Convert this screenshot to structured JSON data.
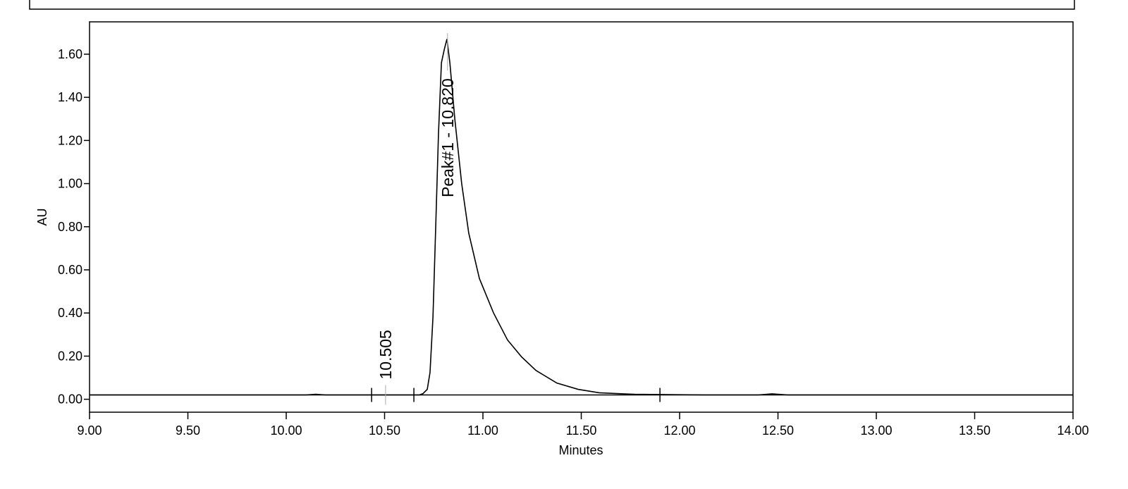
{
  "chart_data": {
    "type": "line",
    "x_label": "Minutes",
    "y_label": "AU",
    "color": "#000000",
    "x": [
      9.0,
      10.1,
      10.15,
      10.2,
      10.6,
      10.677,
      10.695,
      10.717,
      10.731,
      10.746,
      10.76,
      10.774,
      10.789,
      10.803,
      10.817,
      10.832,
      10.857,
      10.892,
      10.928,
      10.982,
      11.054,
      11.125,
      11.197,
      11.269,
      11.376,
      11.484,
      11.591,
      11.77,
      12.13,
      12.4,
      12.47,
      12.55,
      14.0
    ],
    "values": [
      0.02,
      0.02,
      0.023,
      0.02,
      0.02,
      0.02,
      0.026,
      0.046,
      0.124,
      0.38,
      0.8,
      1.23,
      1.56,
      1.62,
      1.67,
      1.56,
      1.3,
      1.0,
      0.77,
      0.56,
      0.4,
      0.275,
      0.196,
      0.134,
      0.075,
      0.046,
      0.03,
      0.023,
      0.02,
      0.02,
      0.025,
      0.02,
      0.02
    ],
    "xlim": [
      9.0,
      14.0
    ],
    "ylim": [
      -0.06,
      1.75
    ],
    "xticks": [
      {
        "value": 9.0,
        "label": "9.00"
      },
      {
        "value": 9.5,
        "label": "9.50"
      },
      {
        "value": 10.0,
        "label": "10.00"
      },
      {
        "value": 10.5,
        "label": "10.50"
      },
      {
        "value": 11.0,
        "label": "11.00"
      },
      {
        "value": 11.5,
        "label": "11.50"
      },
      {
        "value": 12.0,
        "label": "12.00"
      },
      {
        "value": 12.5,
        "label": "12.50"
      },
      {
        "value": 13.0,
        "label": "13.00"
      },
      {
        "value": 13.5,
        "label": "13.50"
      },
      {
        "value": 14.0,
        "label": "14.00"
      }
    ],
    "yticks": [
      {
        "value": 0.0,
        "label": "0.00"
      },
      {
        "value": 0.2,
        "label": "0.20"
      },
      {
        "value": 0.4,
        "label": "0.40"
      },
      {
        "value": 0.6,
        "label": "0.60"
      },
      {
        "value": 0.8,
        "label": "0.80"
      },
      {
        "value": 1.0,
        "label": "1.00"
      },
      {
        "value": 1.2,
        "label": "1.20"
      },
      {
        "value": 1.4,
        "label": "1.40"
      },
      {
        "value": 1.6,
        "label": "1.60"
      }
    ],
    "baseline": 0.02,
    "integration_marks": [
      10.434,
      10.649,
      11.9
    ],
    "annotations": [
      {
        "text": "10.505",
        "x": 10.505
      },
      {
        "text": "Peak#1 - 10.820",
        "x": 10.82
      }
    ]
  }
}
